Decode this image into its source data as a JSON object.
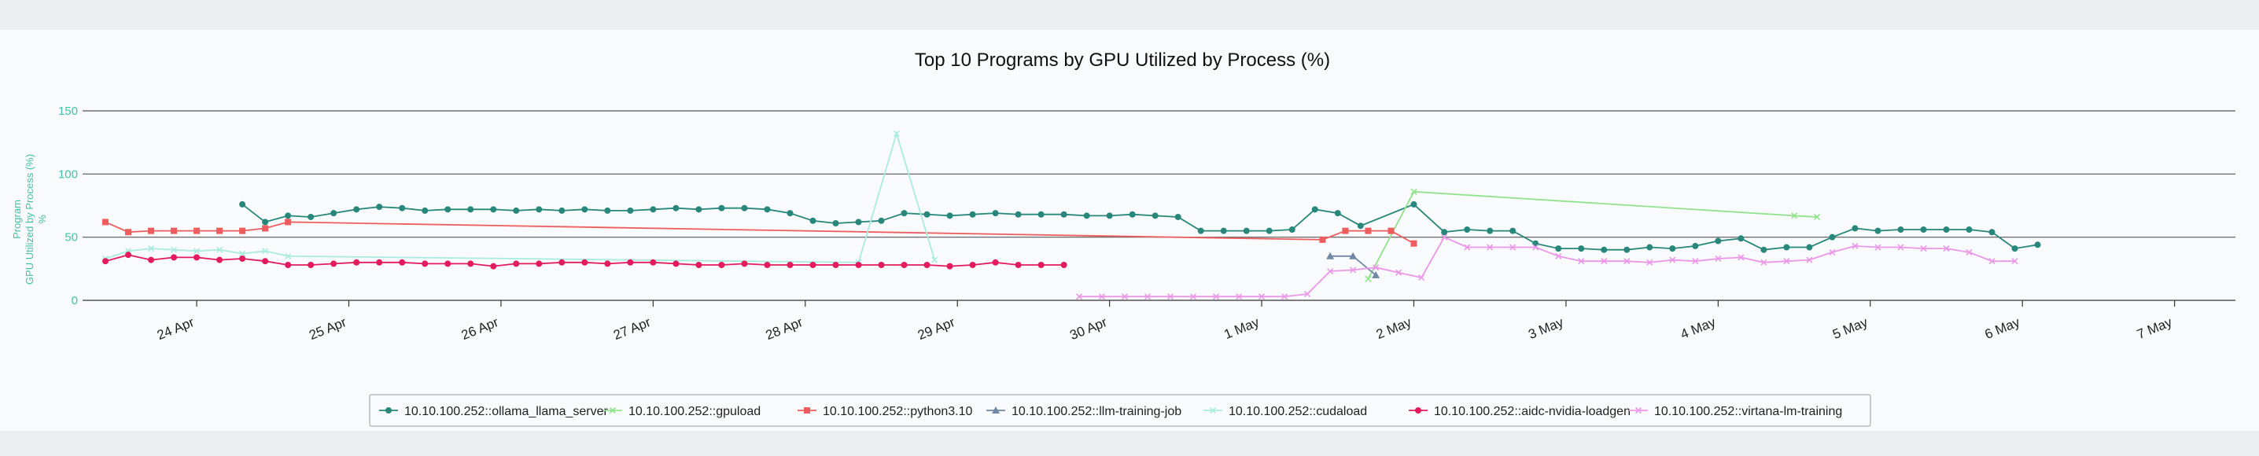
{
  "chart_data": {
    "type": "line",
    "title": "Top 10 Programs by GPU Utilized by Process (%)",
    "ylabel_lines": [
      "Program",
      "GPU Utilized by Process (%)",
      "%"
    ],
    "xlabel": "",
    "xlim": [
      23.25,
      37.4
    ],
    "ylim": [
      0,
      150
    ],
    "y_ticks": [
      0,
      50,
      100,
      150
    ],
    "x_ticks": [
      {
        "x": 24,
        "label": "24 Apr"
      },
      {
        "x": 25,
        "label": "25 Apr"
      },
      {
        "x": 26,
        "label": "26 Apr"
      },
      {
        "x": 27,
        "label": "27 Apr"
      },
      {
        "x": 28,
        "label": "28 Apr"
      },
      {
        "x": 29,
        "label": "29 Apr"
      },
      {
        "x": 30,
        "label": "30 Apr"
      },
      {
        "x": 31,
        "label": "1 May"
      },
      {
        "x": 32,
        "label": "2 May"
      },
      {
        "x": 33,
        "label": "3 May"
      },
      {
        "x": 34,
        "label": "4 May"
      },
      {
        "x": 35,
        "label": "5 May"
      },
      {
        "x": 36,
        "label": "6 May"
      },
      {
        "x": 37,
        "label": "7 May"
      }
    ],
    "grid": true,
    "legend_position": "bottom",
    "series": [
      {
        "name": "10.10.100.252::ollama_llama_server",
        "color": "#26877a",
        "marker": "circle",
        "points": [
          [
            24.3,
            76
          ],
          [
            24.45,
            62
          ],
          [
            24.6,
            67
          ],
          [
            24.75,
            66
          ],
          [
            24.9,
            69
          ],
          [
            25.05,
            72
          ],
          [
            25.2,
            74
          ],
          [
            25.35,
            73
          ],
          [
            25.5,
            71
          ],
          [
            25.65,
            72
          ],
          [
            25.8,
            72
          ],
          [
            25.95,
            72
          ],
          [
            26.1,
            71
          ],
          [
            26.25,
            72
          ],
          [
            26.4,
            71
          ],
          [
            26.55,
            72
          ],
          [
            26.7,
            71
          ],
          [
            26.85,
            71
          ],
          [
            27.0,
            72
          ],
          [
            27.15,
            73
          ],
          [
            27.3,
            72
          ],
          [
            27.45,
            73
          ],
          [
            27.6,
            73
          ],
          [
            27.75,
            72
          ],
          [
            27.9,
            69
          ],
          [
            28.05,
            63
          ],
          [
            28.2,
            61
          ],
          [
            28.35,
            62
          ],
          [
            28.5,
            63
          ],
          [
            28.65,
            69
          ],
          [
            28.8,
            68
          ],
          [
            28.95,
            67
          ],
          [
            29.1,
            68
          ],
          [
            29.25,
            69
          ],
          [
            29.4,
            68
          ],
          [
            29.55,
            68
          ],
          [
            29.7,
            68
          ],
          [
            29.85,
            67
          ],
          [
            30.0,
            67
          ],
          [
            30.15,
            68
          ],
          [
            30.3,
            67
          ],
          [
            30.45,
            66
          ],
          [
            30.6,
            55
          ],
          [
            30.75,
            55
          ],
          [
            30.9,
            55
          ],
          [
            31.05,
            55
          ],
          [
            31.2,
            56
          ],
          [
            31.35,
            72
          ],
          [
            31.5,
            69
          ],
          [
            31.65,
            59
          ],
          [
            32.0,
            76
          ],
          [
            32.2,
            54
          ],
          [
            32.35,
            56
          ],
          [
            32.5,
            55
          ],
          [
            32.65,
            55
          ],
          [
            32.8,
            45
          ],
          [
            32.95,
            41
          ],
          [
            33.1,
            41
          ],
          [
            33.25,
            40
          ],
          [
            33.4,
            40
          ],
          [
            33.55,
            42
          ],
          [
            33.7,
            41
          ],
          [
            33.85,
            43
          ],
          [
            34.0,
            47
          ],
          [
            34.15,
            49
          ],
          [
            34.3,
            40
          ],
          [
            34.45,
            42
          ],
          [
            34.6,
            42
          ],
          [
            34.75,
            50
          ],
          [
            34.9,
            57
          ],
          [
            35.05,
            55
          ],
          [
            35.2,
            56
          ],
          [
            35.35,
            56
          ],
          [
            35.5,
            56
          ],
          [
            35.65,
            56
          ],
          [
            35.8,
            54
          ],
          [
            35.95,
            41
          ],
          [
            36.1,
            44
          ]
        ]
      },
      {
        "name": "10.10.100.252::gpuload",
        "color": "#90e38a",
        "marker": "x",
        "points": [
          [
            31.7,
            17
          ],
          [
            32.0,
            86
          ],
          [
            34.5,
            67
          ],
          [
            34.65,
            66
          ]
        ]
      },
      {
        "name": "10.10.100.252::python3.10",
        "color": "#ee5d5d",
        "marker": "square",
        "points": [
          [
            23.4,
            62
          ],
          [
            23.55,
            54
          ],
          [
            23.7,
            55
          ],
          [
            23.85,
            55
          ],
          [
            24.0,
            55
          ],
          [
            24.15,
            55
          ],
          [
            24.3,
            55
          ],
          [
            24.45,
            57
          ],
          [
            24.6,
            62
          ],
          [
            31.4,
            48
          ],
          [
            31.55,
            55
          ],
          [
            31.7,
            55
          ],
          [
            31.85,
            55
          ],
          [
            32.0,
            45
          ]
        ]
      },
      {
        "name": "10.10.100.252::llm-training-job",
        "color": "#6f88a6",
        "marker": "triangle",
        "points": [
          [
            31.45,
            35
          ],
          [
            31.6,
            35
          ],
          [
            31.75,
            20
          ]
        ]
      },
      {
        "name": "10.10.100.252::cudaload",
        "color": "#a9ecdf",
        "marker": "x",
        "points": [
          [
            23.4,
            33
          ],
          [
            23.55,
            39
          ],
          [
            23.7,
            41
          ],
          [
            23.85,
            40
          ],
          [
            24.0,
            39
          ],
          [
            24.15,
            40
          ],
          [
            24.3,
            37
          ],
          [
            24.45,
            39
          ],
          [
            24.6,
            35
          ],
          [
            28.35,
            30
          ],
          [
            28.6,
            132
          ],
          [
            28.85,
            32
          ]
        ]
      },
      {
        "name": "10.10.100.252::aidc-nvidia-loadgen",
        "color": "#e31a5c",
        "marker": "circle",
        "points": [
          [
            23.4,
            31
          ],
          [
            23.55,
            36
          ],
          [
            23.7,
            32
          ],
          [
            23.85,
            34
          ],
          [
            24.0,
            34
          ],
          [
            24.15,
            32
          ],
          [
            24.3,
            33
          ],
          [
            24.45,
            31
          ],
          [
            24.6,
            28
          ],
          [
            24.75,
            28
          ],
          [
            24.9,
            29
          ],
          [
            25.05,
            30
          ],
          [
            25.2,
            30
          ],
          [
            25.35,
            30
          ],
          [
            25.5,
            29
          ],
          [
            25.65,
            29
          ],
          [
            25.8,
            29
          ],
          [
            25.95,
            27
          ],
          [
            26.1,
            29
          ],
          [
            26.25,
            29
          ],
          [
            26.4,
            30
          ],
          [
            26.55,
            30
          ],
          [
            26.7,
            29
          ],
          [
            26.85,
            30
          ],
          [
            27.0,
            30
          ],
          [
            27.15,
            29
          ],
          [
            27.3,
            28
          ],
          [
            27.45,
            28
          ],
          [
            27.6,
            29
          ],
          [
            27.75,
            28
          ],
          [
            27.9,
            28
          ],
          [
            28.05,
            28
          ],
          [
            28.2,
            28
          ],
          [
            28.35,
            28
          ],
          [
            28.5,
            28
          ],
          [
            28.65,
            28
          ],
          [
            28.8,
            28
          ],
          [
            28.95,
            27
          ],
          [
            29.1,
            28
          ],
          [
            29.25,
            30
          ],
          [
            29.4,
            28
          ],
          [
            29.55,
            28
          ],
          [
            29.7,
            28
          ]
        ]
      },
      {
        "name": "10.10.100.252::virtana-lm-training",
        "color": "#eb97e8",
        "marker": "x",
        "points": [
          [
            29.8,
            3
          ],
          [
            29.95,
            3
          ],
          [
            30.1,
            3
          ],
          [
            30.25,
            3
          ],
          [
            30.4,
            3
          ],
          [
            30.55,
            3
          ],
          [
            30.7,
            3
          ],
          [
            30.85,
            3
          ],
          [
            31.0,
            3
          ],
          [
            31.15,
            3
          ],
          [
            31.3,
            5
          ],
          [
            31.45,
            23
          ],
          [
            31.6,
            24
          ],
          [
            31.75,
            26
          ],
          [
            31.9,
            22
          ],
          [
            32.05,
            18
          ],
          [
            32.2,
            50
          ],
          [
            32.35,
            42
          ],
          [
            32.5,
            42
          ],
          [
            32.65,
            42
          ],
          [
            32.8,
            42
          ],
          [
            32.95,
            35
          ],
          [
            33.1,
            31
          ],
          [
            33.25,
            31
          ],
          [
            33.4,
            31
          ],
          [
            33.55,
            30
          ],
          [
            33.7,
            32
          ],
          [
            33.85,
            31
          ],
          [
            34.0,
            33
          ],
          [
            34.15,
            34
          ],
          [
            34.3,
            30
          ],
          [
            34.45,
            31
          ],
          [
            34.6,
            32
          ],
          [
            34.75,
            38
          ],
          [
            34.9,
            43
          ],
          [
            35.05,
            42
          ],
          [
            35.2,
            42
          ],
          [
            35.35,
            41
          ],
          [
            35.5,
            41
          ],
          [
            35.65,
            38
          ],
          [
            35.8,
            31
          ],
          [
            35.95,
            31
          ]
        ]
      }
    ]
  }
}
